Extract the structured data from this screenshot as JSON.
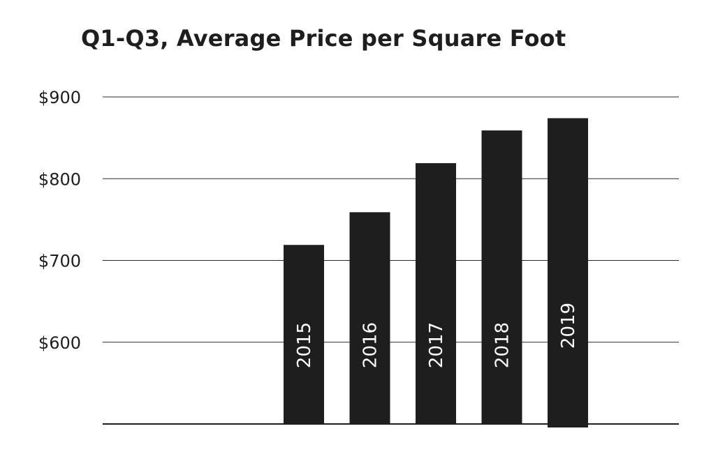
{
  "chart_data": {
    "type": "bar",
    "title": "Q1-Q3, Average Price per Square Foot",
    "categories": [
      "2015",
      "2016",
      "2017",
      "2018",
      "2019"
    ],
    "values": [
      719,
      759,
      819,
      859,
      874
    ],
    "ylim": [
      500,
      900
    ],
    "yticks": [
      {
        "value": 600,
        "label": "$600"
      },
      {
        "value": 700,
        "label": "$700"
      },
      {
        "value": 800,
        "label": "$800"
      },
      {
        "value": 900,
        "label": "$900"
      }
    ],
    "xlabel": "",
    "ylabel": "",
    "grid": true,
    "legend": "none",
    "category_labels_inside_bars": true,
    "colors": {
      "bar": "#1f1e1e",
      "grid": "#2a2a2a",
      "text": "#1e1e1e",
      "bar_label": "#ffffff"
    }
  }
}
